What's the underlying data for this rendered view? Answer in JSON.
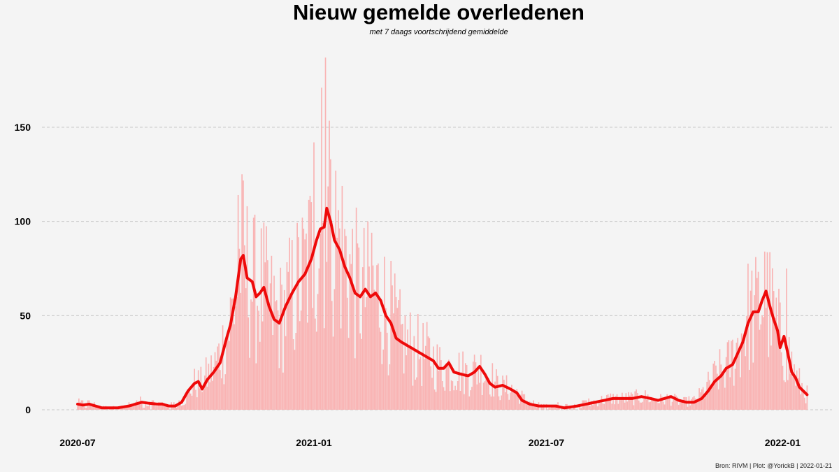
{
  "chart_data": {
    "type": "bar",
    "title": "Nieuw gemelde overledenen",
    "subtitle": "met 7 daags voortschrijdend gemiddelde",
    "caption": "Bron: RIVM | Plot: @YorickB |  2022-01-21",
    "xlabel": "",
    "ylabel": "",
    "x_range": [
      "2020-07-01",
      "2022-01-31"
    ],
    "ylim": [
      -13,
      190
    ],
    "y_ticks": [
      0,
      50,
      100,
      150
    ],
    "x_ticks": [
      "2020-07",
      "2021-01",
      "2021-07",
      "2022-01"
    ],
    "x_tick_dates": [
      "2020-07-01",
      "2021-01-01",
      "2021-07-01",
      "2022-01-01"
    ],
    "grid": "horizontal dashed",
    "series": [
      {
        "type": "bar",
        "color": "#f9b3b3",
        "values_by_date": {
          "start": "2020-07-01",
          "end": "2022-01-20",
          "anchors": [
            [
              "2020-07-01",
              3
            ],
            [
              "2020-07-10",
              3
            ],
            [
              "2020-07-20",
              1
            ],
            [
              "2020-08-01",
              1
            ],
            [
              "2020-08-10",
              2
            ],
            [
              "2020-08-20",
              4
            ],
            [
              "2020-09-01",
              3
            ],
            [
              "2020-09-12",
              2
            ],
            [
              "2020-09-22",
              5
            ],
            [
              "2020-09-30",
              14
            ],
            [
              "2020-10-05",
              14
            ],
            [
              "2020-10-15",
              22
            ],
            [
              "2020-10-25",
              38
            ],
            [
              "2020-11-01",
              60
            ],
            [
              "2020-11-05",
              82
            ],
            [
              "2020-11-12",
              68
            ],
            [
              "2020-11-18",
              62
            ],
            [
              "2020-11-22",
              64
            ],
            [
              "2020-11-28",
              55
            ],
            [
              "2020-12-05",
              48
            ],
            [
              "2020-12-15",
              60
            ],
            [
              "2020-12-25",
              72
            ],
            [
              "2021-01-01",
              86
            ],
            [
              "2021-01-08",
              100
            ],
            [
              "2021-01-12",
              102
            ],
            [
              "2021-01-20",
              90
            ],
            [
              "2021-01-28",
              76
            ],
            [
              "2021-02-05",
              62
            ],
            [
              "2021-02-15",
              62
            ],
            [
              "2021-02-22",
              60
            ],
            [
              "2021-03-01",
              50
            ],
            [
              "2021-03-10",
              38
            ],
            [
              "2021-03-20",
              32
            ],
            [
              "2021-04-01",
              28
            ],
            [
              "2021-04-10",
              22
            ],
            [
              "2021-04-20",
              22
            ],
            [
              "2021-05-01",
              19
            ],
            [
              "2021-05-10",
              22
            ],
            [
              "2021-05-18",
              18
            ],
            [
              "2021-05-25",
              12
            ],
            [
              "2021-06-05",
              11
            ],
            [
              "2021-06-15",
              5
            ],
            [
              "2021-06-25",
              2
            ],
            [
              "2021-07-10",
              2
            ],
            [
              "2021-07-25",
              2
            ],
            [
              "2021-08-05",
              4
            ],
            [
              "2021-08-20",
              6
            ],
            [
              "2021-09-01",
              6
            ],
            [
              "2021-09-15",
              7
            ],
            [
              "2021-09-25",
              5
            ],
            [
              "2021-10-05",
              6
            ],
            [
              "2021-10-15",
              4
            ],
            [
              "2021-10-25",
              5
            ],
            [
              "2021-11-01",
              10
            ],
            [
              "2021-11-10",
              18
            ],
            [
              "2021-11-20",
              24
            ],
            [
              "2021-11-28",
              35
            ],
            [
              "2021-12-05",
              50
            ],
            [
              "2021-12-12",
              52
            ],
            [
              "2021-12-18",
              62
            ],
            [
              "2021-12-24",
              50
            ],
            [
              "2021-12-30",
              38
            ],
            [
              "2022-01-05",
              30
            ],
            [
              "2022-01-12",
              16
            ],
            [
              "2022-01-20",
              8
            ]
          ],
          "noise": "daily reports scatter around the 7-day average (approx. ±60%)",
          "peaks": [
            [
              "2020-11-03",
              114
            ],
            [
              "2021-01-01",
              142
            ],
            [
              "2021-01-07",
              171
            ],
            [
              "2021-01-10",
              187
            ],
            [
              "2021-01-14",
              133
            ],
            [
              "2021-02-15",
              94
            ],
            [
              "2021-12-18",
              84
            ],
            [
              "2022-01-04",
              75
            ]
          ]
        }
      },
      {
        "type": "line",
        "name": "",
        "color": "#ee0a0a",
        "values_by_date": {
          "start": "2020-07-01",
          "end": "2022-01-20",
          "points": [
            [
              "2020-07-01",
              3
            ],
            [
              "2020-07-05",
              2.5
            ],
            [
              "2020-07-10",
              3
            ],
            [
              "2020-07-15",
              2
            ],
            [
              "2020-07-20",
              1
            ],
            [
              "2020-07-25",
              1
            ],
            [
              "2020-08-01",
              1
            ],
            [
              "2020-08-10",
              2
            ],
            [
              "2020-08-15",
              3
            ],
            [
              "2020-08-20",
              4
            ],
            [
              "2020-08-25",
              3.5
            ],
            [
              "2020-09-01",
              3
            ],
            [
              "2020-09-05",
              3
            ],
            [
              "2020-09-10",
              2
            ],
            [
              "2020-09-15",
              2
            ],
            [
              "2020-09-20",
              4
            ],
            [
              "2020-09-25",
              10
            ],
            [
              "2020-09-30",
              14
            ],
            [
              "2020-10-03",
              15
            ],
            [
              "2020-10-06",
              11
            ],
            [
              "2020-10-10",
              16
            ],
            [
              "2020-10-15",
              20
            ],
            [
              "2020-10-20",
              25
            ],
            [
              "2020-10-25",
              38
            ],
            [
              "2020-10-28",
              45
            ],
            [
              "2020-11-01",
              60
            ],
            [
              "2020-11-05",
              80
            ],
            [
              "2020-11-07",
              82
            ],
            [
              "2020-11-10",
              70
            ],
            [
              "2020-11-14",
              68
            ],
            [
              "2020-11-17",
              60
            ],
            [
              "2020-11-20",
              62
            ],
            [
              "2020-11-23",
              65
            ],
            [
              "2020-11-27",
              55
            ],
            [
              "2020-12-01",
              48
            ],
            [
              "2020-12-05",
              46
            ],
            [
              "2020-12-10",
              55
            ],
            [
              "2020-12-15",
              62
            ],
            [
              "2020-12-20",
              68
            ],
            [
              "2020-12-25",
              72
            ],
            [
              "2020-12-30",
              80
            ],
            [
              "2021-01-03",
              90
            ],
            [
              "2021-01-06",
              96
            ],
            [
              "2021-01-09",
              97
            ],
            [
              "2021-01-11",
              107
            ],
            [
              "2021-01-14",
              100
            ],
            [
              "2021-01-17",
              90
            ],
            [
              "2021-01-21",
              85
            ],
            [
              "2021-01-25",
              76
            ],
            [
              "2021-01-29",
              70
            ],
            [
              "2021-02-02",
              62
            ],
            [
              "2021-02-06",
              60
            ],
            [
              "2021-02-10",
              64
            ],
            [
              "2021-02-14",
              60
            ],
            [
              "2021-02-18",
              62
            ],
            [
              "2021-02-22",
              58
            ],
            [
              "2021-02-26",
              50
            ],
            [
              "2021-03-02",
              46
            ],
            [
              "2021-03-06",
              38
            ],
            [
              "2021-03-10",
              36
            ],
            [
              "2021-03-15",
              34
            ],
            [
              "2021-03-20",
              32
            ],
            [
              "2021-03-25",
              30
            ],
            [
              "2021-03-30",
              28
            ],
            [
              "2021-04-04",
              26
            ],
            [
              "2021-04-08",
              22
            ],
            [
              "2021-04-12",
              22
            ],
            [
              "2021-04-16",
              25
            ],
            [
              "2021-04-20",
              20
            ],
            [
              "2021-04-25",
              19
            ],
            [
              "2021-05-01",
              18
            ],
            [
              "2021-05-06",
              20
            ],
            [
              "2021-05-10",
              23
            ],
            [
              "2021-05-14",
              19
            ],
            [
              "2021-05-18",
              14
            ],
            [
              "2021-05-22",
              12
            ],
            [
              "2021-05-28",
              13
            ],
            [
              "2021-06-03",
              11
            ],
            [
              "2021-06-08",
              9
            ],
            [
              "2021-06-12",
              5
            ],
            [
              "2021-06-18",
              3
            ],
            [
              "2021-06-25",
              2
            ],
            [
              "2021-07-01",
              2
            ],
            [
              "2021-07-08",
              2
            ],
            [
              "2021-07-15",
              1
            ],
            [
              "2021-07-25",
              2
            ],
            [
              "2021-08-01",
              3
            ],
            [
              "2021-08-08",
              4
            ],
            [
              "2021-08-15",
              5
            ],
            [
              "2021-08-22",
              6
            ],
            [
              "2021-08-30",
              6
            ],
            [
              "2021-09-06",
              6
            ],
            [
              "2021-09-13",
              7
            ],
            [
              "2021-09-20",
              6
            ],
            [
              "2021-09-26",
              5
            ],
            [
              "2021-10-01",
              6
            ],
            [
              "2021-10-06",
              7
            ],
            [
              "2021-10-12",
              5
            ],
            [
              "2021-10-18",
              4
            ],
            [
              "2021-10-24",
              4
            ],
            [
              "2021-10-30",
              6
            ],
            [
              "2021-11-04",
              10
            ],
            [
              "2021-11-09",
              15
            ],
            [
              "2021-11-14",
              18
            ],
            [
              "2021-11-18",
              22
            ],
            [
              "2021-11-23",
              24
            ],
            [
              "2021-11-27",
              30
            ],
            [
              "2021-12-01",
              36
            ],
            [
              "2021-12-05",
              46
            ],
            [
              "2021-12-09",
              52
            ],
            [
              "2021-12-13",
              52
            ],
            [
              "2021-12-16",
              58
            ],
            [
              "2021-12-19",
              63
            ],
            [
              "2021-12-22",
              55
            ],
            [
              "2021-12-25",
              48
            ],
            [
              "2021-12-28",
              42
            ],
            [
              "2021-12-30",
              33
            ],
            [
              "2022-01-02",
              39
            ],
            [
              "2022-01-05",
              30
            ],
            [
              "2022-01-08",
              20
            ],
            [
              "2022-01-11",
              17
            ],
            [
              "2022-01-14",
              12
            ],
            [
              "2022-01-17",
              10
            ],
            [
              "2022-01-20",
              8
            ]
          ]
        }
      }
    ]
  }
}
